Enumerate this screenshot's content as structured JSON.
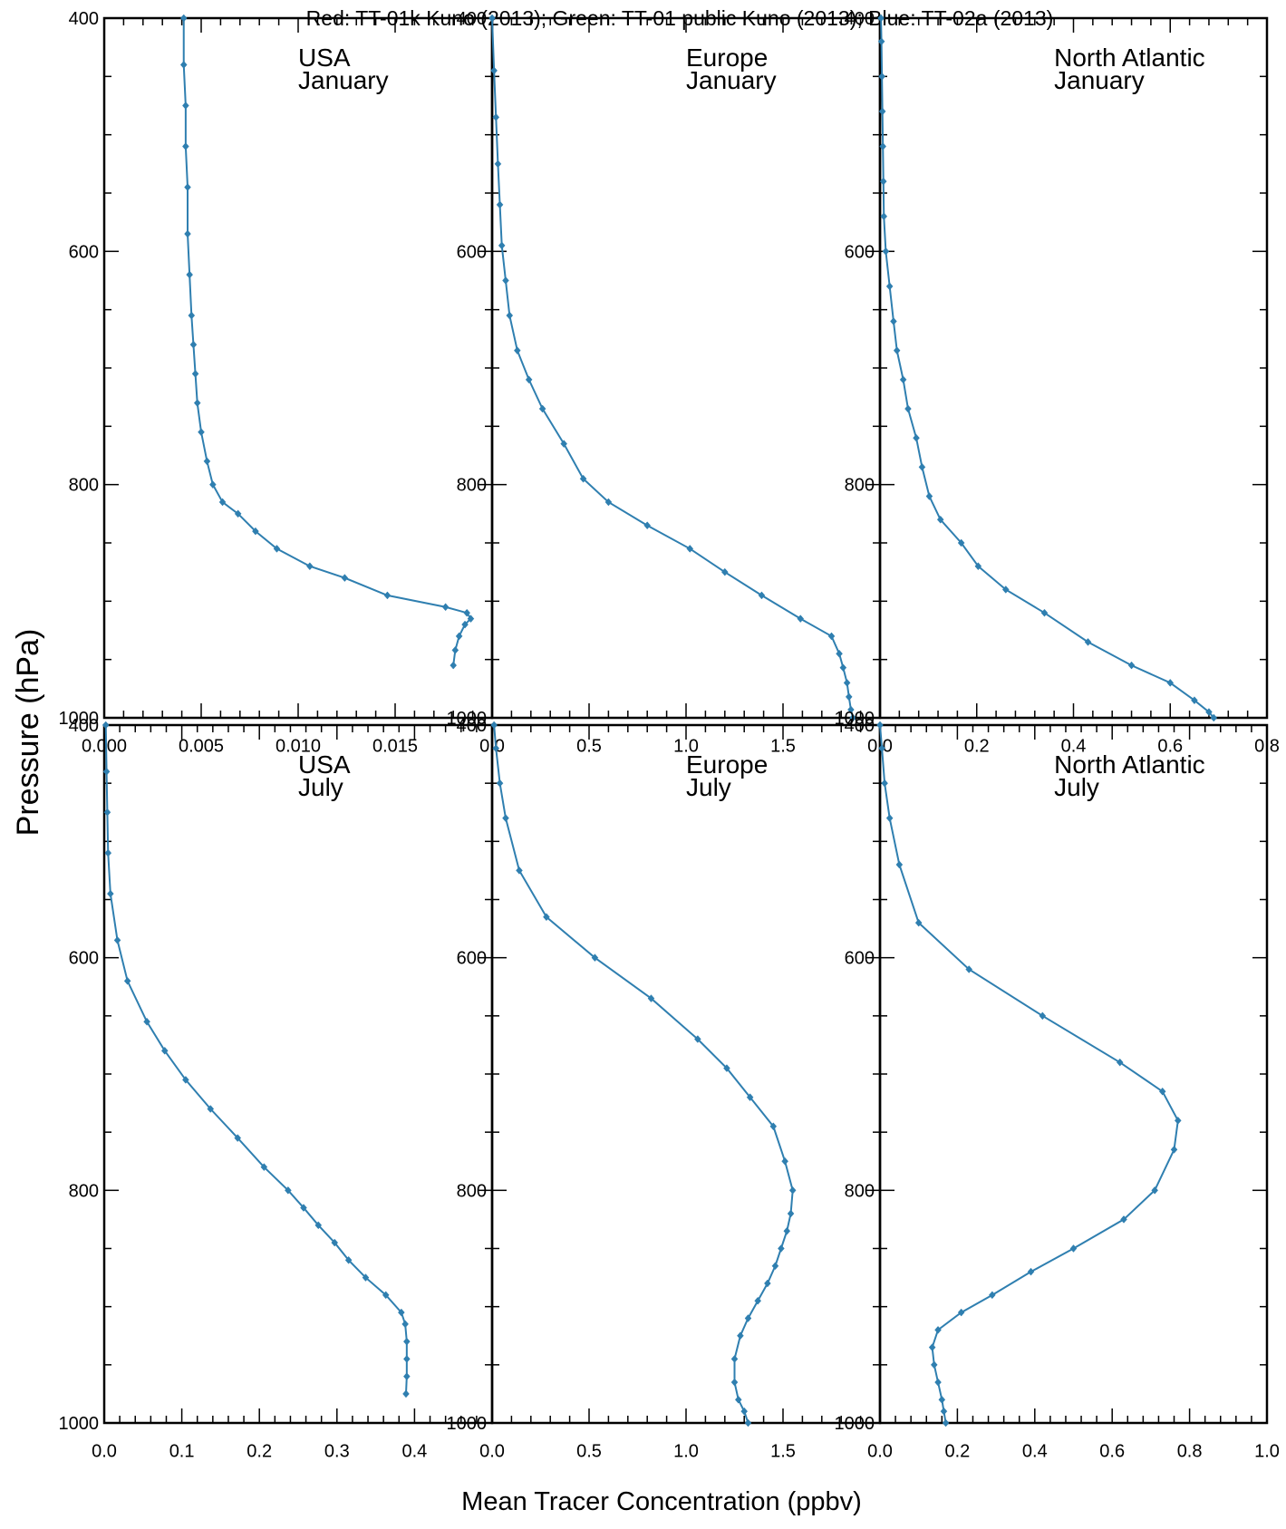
{
  "figure": {
    "title": "Red: TT-01k Kuno (2013); Green: TT-01 public Kuno (2013); Blue: TT-02a (2013)",
    "ylabel": "Pressure (hPa)",
    "xlabel": "Mean Tracer Concentration (ppbv)",
    "line_color": "#2f7fb0"
  },
  "chart_data": [
    {
      "type": "line",
      "title": [
        "USA",
        "January"
      ],
      "xlim": [
        0,
        0.02
      ],
      "ylim": [
        1000,
        400
      ],
      "xticks": [
        0.0,
        0.005,
        0.01,
        0.015
      ],
      "xtick_labels": [
        "0.000",
        "0.005",
        "0.010",
        "0.015"
      ],
      "yticks": [
        400,
        600,
        800,
        1000
      ],
      "ytick_labels": [
        "400",
        "600",
        "800",
        "1000"
      ],
      "series": [
        {
          "x": [
            0.0041,
            0.0041,
            0.0042,
            0.0042,
            0.0043,
            0.0043,
            0.0044,
            0.0045,
            0.0046,
            0.0047,
            0.0048,
            0.005,
            0.0053,
            0.0056,
            0.0061,
            0.0069,
            0.0078,
            0.0089,
            0.0106,
            0.0124,
            0.0146,
            0.0176,
            0.0187,
            0.0189,
            0.0186,
            0.0183,
            0.0181,
            0.018
          ],
          "y": [
            400,
            440,
            475,
            510,
            545,
            585,
            620,
            655,
            680,
            705,
            730,
            755,
            780,
            800,
            815,
            825,
            840,
            855,
            870,
            880,
            895,
            905,
            910,
            915,
            920,
            930,
            942,
            955
          ]
        }
      ]
    },
    {
      "type": "line",
      "title": [
        "Europe",
        "January"
      ],
      "xlim": [
        0,
        2.0
      ],
      "ylim": [
        1000,
        400
      ],
      "xticks": [
        0.0,
        0.5,
        1.0,
        1.5
      ],
      "xtick_labels": [
        "0.0",
        "0.5",
        "1.0",
        "1.5"
      ],
      "yticks": [
        400,
        600,
        800,
        1000
      ],
      "ytick_labels": [
        "400",
        "600",
        "800",
        "1000"
      ],
      "series": [
        {
          "x": [
            0.0,
            0.01,
            0.02,
            0.03,
            0.04,
            0.05,
            0.07,
            0.09,
            0.13,
            0.19,
            0.26,
            0.37,
            0.47,
            0.6,
            0.8,
            1.02,
            1.2,
            1.39,
            1.59,
            1.75,
            1.79,
            1.81,
            1.83,
            1.84,
            1.85,
            1.86
          ],
          "y": [
            400,
            445,
            485,
            525,
            560,
            595,
            625,
            655,
            685,
            710,
            735,
            765,
            795,
            815,
            835,
            855,
            875,
            895,
            915,
            930,
            945,
            957,
            970,
            982,
            993,
            1000
          ]
        }
      ]
    },
    {
      "type": "line",
      "title": [
        "North Atlantic",
        "January"
      ],
      "xlim": [
        0,
        0.8
      ],
      "ylim": [
        1000,
        400
      ],
      "xticks": [
        0.0,
        0.2,
        0.4,
        0.6,
        0.8
      ],
      "xtick_labels": [
        "0.0",
        "0.2",
        "0.4",
        "0.6",
        "0.8"
      ],
      "yticks": [
        400,
        600,
        800,
        1000
      ],
      "ytick_labels": [
        "400",
        "600",
        "800",
        "1000"
      ],
      "series": [
        {
          "x": [
            0.002,
            0.003,
            0.004,
            0.005,
            0.006,
            0.007,
            0.008,
            0.012,
            0.02,
            0.028,
            0.035,
            0.048,
            0.058,
            0.075,
            0.087,
            0.102,
            0.125,
            0.168,
            0.203,
            0.26,
            0.34,
            0.43,
            0.52,
            0.6,
            0.65,
            0.68,
            0.69
          ],
          "y": [
            400,
            420,
            450,
            480,
            510,
            540,
            570,
            600,
            630,
            660,
            685,
            710,
            735,
            760,
            785,
            810,
            830,
            850,
            870,
            890,
            910,
            935,
            955,
            970,
            985,
            995,
            1000
          ]
        }
      ]
    },
    {
      "type": "line",
      "title": [
        "USA",
        "July"
      ],
      "xlim": [
        0,
        0.5
      ],
      "ylim": [
        1000,
        400
      ],
      "xticks": [
        0.0,
        0.1,
        0.2,
        0.3,
        0.4
      ],
      "xtick_labels": [
        "0.0",
        "0.1",
        "0.2",
        "0.3",
        "0.4"
      ],
      "yticks": [
        400,
        600,
        800,
        1000
      ],
      "ytick_labels": [
        "400",
        "600",
        "800",
        "1000"
      ],
      "series": [
        {
          "x": [
            0.002,
            0.003,
            0.004,
            0.005,
            0.008,
            0.017,
            0.03,
            0.055,
            0.078,
            0.105,
            0.137,
            0.172,
            0.206,
            0.237,
            0.257,
            0.276,
            0.297,
            0.315,
            0.337,
            0.363,
            0.383,
            0.388,
            0.39,
            0.39,
            0.39,
            0.389
          ],
          "y": [
            400,
            440,
            475,
            510,
            545,
            585,
            620,
            655,
            680,
            705,
            730,
            755,
            780,
            800,
            815,
            830,
            845,
            860,
            875,
            890,
            905,
            915,
            930,
            945,
            960,
            975
          ]
        }
      ]
    },
    {
      "type": "line",
      "title": [
        "Europe",
        "July"
      ],
      "xlim": [
        0,
        2.0
      ],
      "ylim": [
        1000,
        400
      ],
      "xticks": [
        0.0,
        0.5,
        1.0,
        1.5
      ],
      "xtick_labels": [
        "0.0",
        "0.5",
        "1.0",
        "1.5"
      ],
      "yticks": [
        400,
        600,
        800,
        1000
      ],
      "ytick_labels": [
        "400",
        "600",
        "800",
        "1000"
      ],
      "series": [
        {
          "x": [
            0.01,
            0.02,
            0.04,
            0.07,
            0.14,
            0.28,
            0.53,
            0.82,
            1.06,
            1.21,
            1.33,
            1.45,
            1.51,
            1.55,
            1.54,
            1.52,
            1.49,
            1.46,
            1.42,
            1.37,
            1.32,
            1.28,
            1.25,
            1.25,
            1.27,
            1.3,
            1.32
          ],
          "y": [
            400,
            420,
            450,
            480,
            525,
            565,
            600,
            635,
            670,
            695,
            720,
            745,
            775,
            800,
            820,
            835,
            850,
            865,
            880,
            895,
            910,
            925,
            945,
            965,
            980,
            990,
            1000
          ]
        }
      ]
    },
    {
      "type": "line",
      "title": [
        "North Atlantic",
        "July"
      ],
      "xlim": [
        0,
        1.0
      ],
      "ylim": [
        1000,
        400
      ],
      "xticks": [
        0.0,
        0.2,
        0.4,
        0.6,
        0.8,
        1.0
      ],
      "xtick_labels": [
        "0.0",
        "0.2",
        "0.4",
        "0.6",
        "0.8",
        "1.0"
      ],
      "yticks": [
        400,
        600,
        800,
        1000
      ],
      "ytick_labels": [
        "400",
        "600",
        "800",
        "1000"
      ],
      "series": [
        {
          "x": [
            0.0,
            0.005,
            0.012,
            0.025,
            0.05,
            0.1,
            0.23,
            0.42,
            0.62,
            0.73,
            0.77,
            0.76,
            0.71,
            0.63,
            0.5,
            0.39,
            0.29,
            0.21,
            0.15,
            0.135,
            0.14,
            0.15,
            0.16,
            0.165,
            0.17
          ],
          "y": [
            400,
            420,
            450,
            480,
            520,
            570,
            610,
            650,
            690,
            715,
            740,
            765,
            800,
            825,
            850,
            870,
            890,
            905,
            920,
            935,
            950,
            965,
            980,
            990,
            1000
          ]
        }
      ]
    }
  ]
}
